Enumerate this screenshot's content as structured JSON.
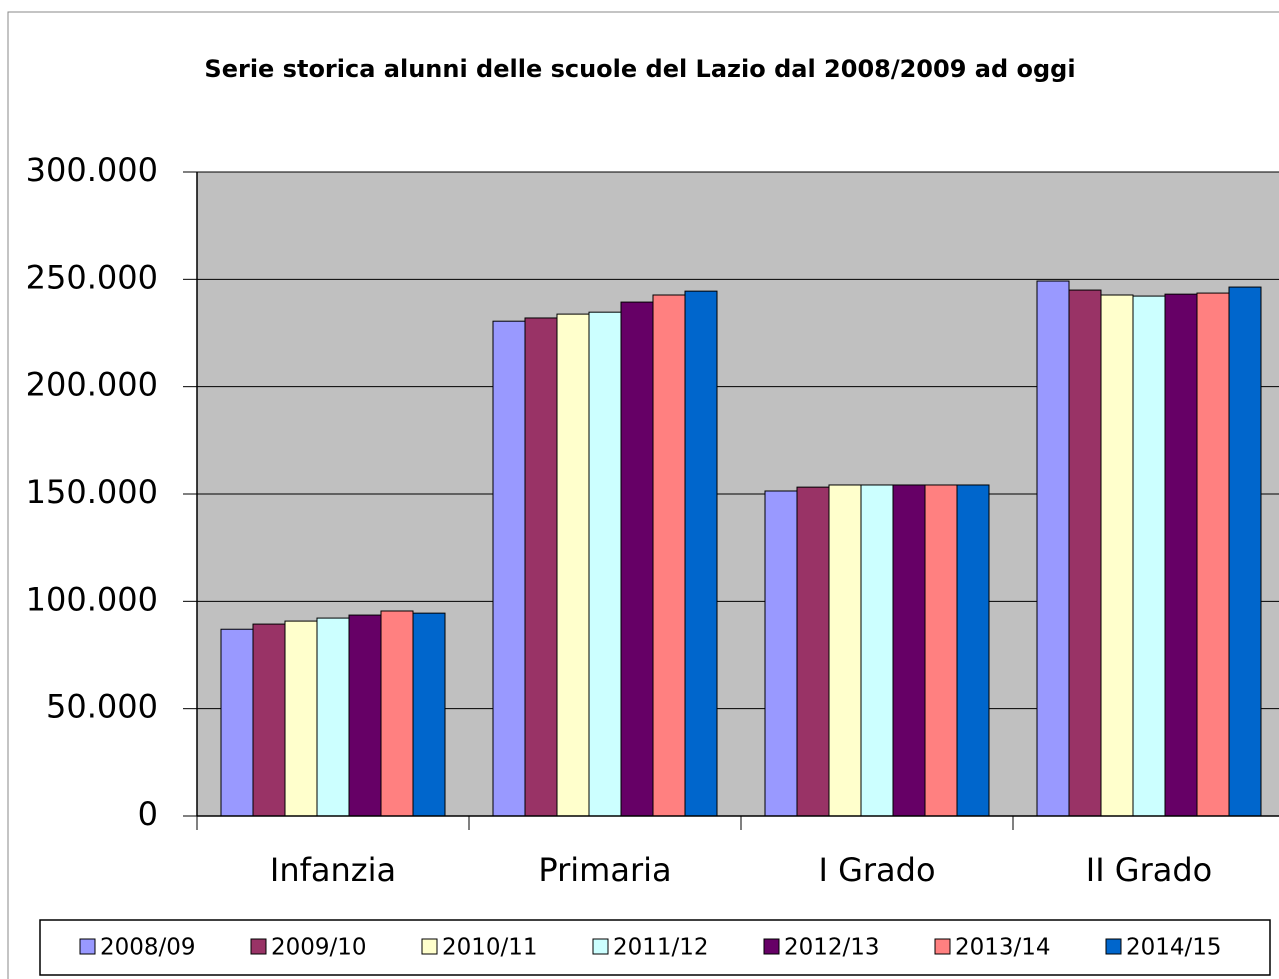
{
  "chart_data": {
    "type": "bar",
    "title": "Serie storica alunni delle scuole del Lazio dal 2008/2009 ad oggi",
    "categories": [
      "Infanzia",
      "Primaria",
      "I Grado",
      "II Grado"
    ],
    "series": [
      {
        "name": "2008/09",
        "color": "#9999ff",
        "values": [
          87000,
          230500,
          151400,
          249200
        ]
      },
      {
        "name": "2009/10",
        "color": "#993366",
        "values": [
          89400,
          232000,
          153200,
          245000
        ]
      },
      {
        "name": "2010/11",
        "color": "#ffffcc",
        "values": [
          90800,
          233800,
          154200,
          242700
        ]
      },
      {
        "name": "2011/12",
        "color": "#ccffff",
        "values": [
          92200,
          234700,
          154200,
          242200
        ]
      },
      {
        "name": "2012/13",
        "color": "#660066",
        "values": [
          93600,
          239400,
          154200,
          243100
        ]
      },
      {
        "name": "2013/14",
        "color": "#ff8080",
        "values": [
          95500,
          242700,
          154200,
          243600
        ]
      },
      {
        "name": "2014/15",
        "color": "#0066cc",
        "values": [
          94500,
          244500,
          154200,
          246400
        ]
      }
    ],
    "ylim": [
      0,
      300000
    ],
    "yticks": [
      0,
      {
        "value": 50000,
        "label": "50.000"
      },
      {
        "value": 100000,
        "label": "100.000"
      },
      {
        "value": 150000,
        "label": "150.000"
      },
      {
        "value": 200000,
        "label": "200.000"
      },
      {
        "value": 250000,
        "label": "250.000"
      },
      {
        "value": 300000,
        "label": "300.000"
      }
    ],
    "grid": true,
    "legend": "bottom"
  }
}
